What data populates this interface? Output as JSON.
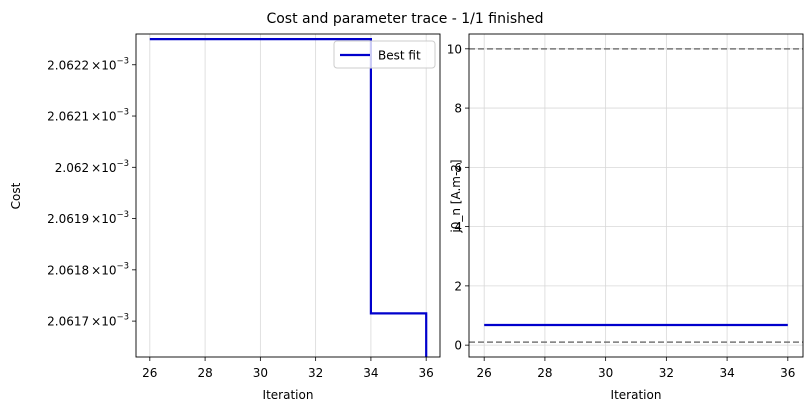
{
  "figure": {
    "title": "Cost and parameter trace - 1/1 finished"
  },
  "chart_data": [
    {
      "type": "line",
      "xlabel": "Iteration",
      "ylabel": "Cost",
      "xlim": [
        25.5,
        36.5
      ],
      "ylim": [
        0.00206163,
        0.00206226
      ],
      "xticks": [
        26,
        28,
        30,
        32,
        34,
        36
      ],
      "yticks": [
        {
          "value": 0.0020617,
          "mantissa": "2.0617"
        },
        {
          "value": 0.0020618,
          "mantissa": "2.0618"
        },
        {
          "value": 0.0020619,
          "mantissa": "2.0619"
        },
        {
          "value": 0.002062,
          "mantissa": "2.062"
        },
        {
          "value": 0.0020621,
          "mantissa": "2.0621"
        },
        {
          "value": 0.0020622,
          "mantissa": "2.0622"
        }
      ],
      "ytick_multiplier": "×10",
      "ytick_exponent": "−3",
      "grid": "x",
      "legend": {
        "placement": "top-right",
        "entries": [
          "Best fit"
        ]
      },
      "series": [
        {
          "name": "Best fit",
          "color": "#0000cc",
          "step": true,
          "x": [
            26,
            34,
            34,
            36,
            36
          ],
          "y": [
            0.00206225,
            0.00206225,
            0.002061715,
            0.002061715,
            0.00206163
          ]
        }
      ]
    },
    {
      "type": "line",
      "xlabel": "Iteration",
      "ylabel": "j0_n [A.m-2]",
      "xlim": [
        25.5,
        36.5
      ],
      "ylim": [
        -0.4,
        10.5
      ],
      "xticks": [
        26,
        28,
        30,
        32,
        34,
        36
      ],
      "yticks": [
        0,
        2,
        4,
        6,
        8,
        10
      ],
      "grid": "both",
      "hlines": [
        {
          "y": 10,
          "style": "dashed",
          "color": "#777777"
        },
        {
          "y": 0.1,
          "style": "dashed",
          "color": "#777777"
        }
      ],
      "series": [
        {
          "color": "#0000cc",
          "x": [
            26,
            36
          ],
          "y": [
            0.68,
            0.68
          ]
        }
      ]
    }
  ]
}
